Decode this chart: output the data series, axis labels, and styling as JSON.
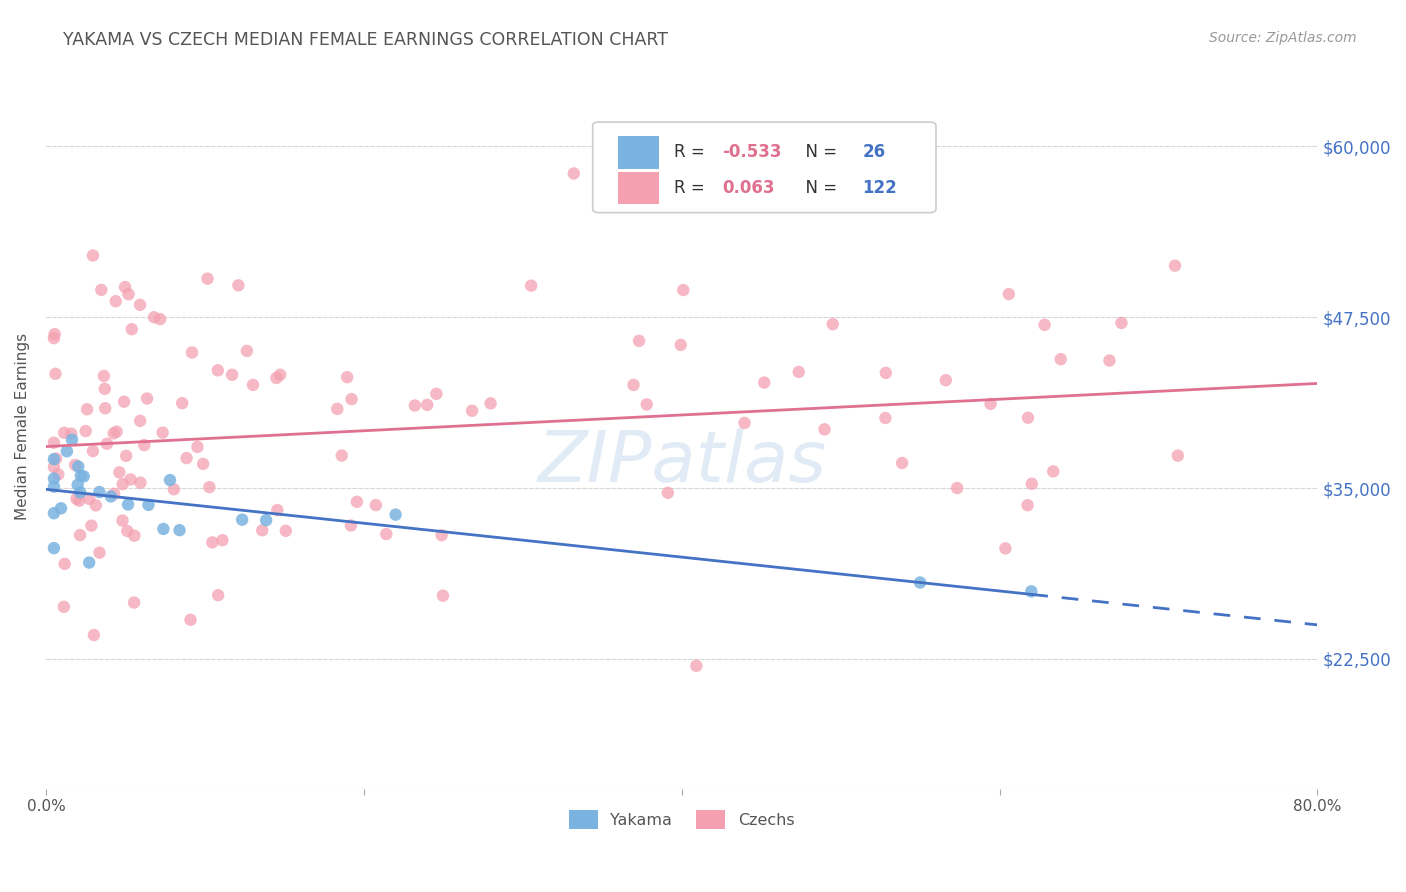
{
  "title": "YAKAMA VS CZECH MEDIAN FEMALE EARNINGS CORRELATION CHART",
  "source_text": "Source: ZipAtlas.com",
  "ylabel": "Median Female Earnings",
  "yticks": [
    22500,
    35000,
    47500,
    60000
  ],
  "ytick_labels": [
    "$22,500",
    "$35,000",
    "$47,500",
    "$60,000"
  ],
  "xmin": 0.0,
  "xmax": 0.8,
  "ymin": 13000,
  "ymax": 66000,
  "yakama_color": "#7ab3e0",
  "czechs_color": "#f4a0b0",
  "yakama_line_color": "#4472c4",
  "czechs_line_color": "#e07090",
  "yakama_R": -0.533,
  "yakama_N": 26,
  "czechs_R": 0.063,
  "czechs_N": 122,
  "legend_labels": [
    "Yakama",
    "Czechs"
  ],
  "watermark": "ZIPatlas",
  "background_color": "#ffffff",
  "grid_color": "#d8d8d8",
  "title_color": "#555555",
  "axis_label_color": "#555555",
  "tick_color": "#4472c4",
  "legend_R_color": "#e07090",
  "legend_N_color": "#4472c4"
}
